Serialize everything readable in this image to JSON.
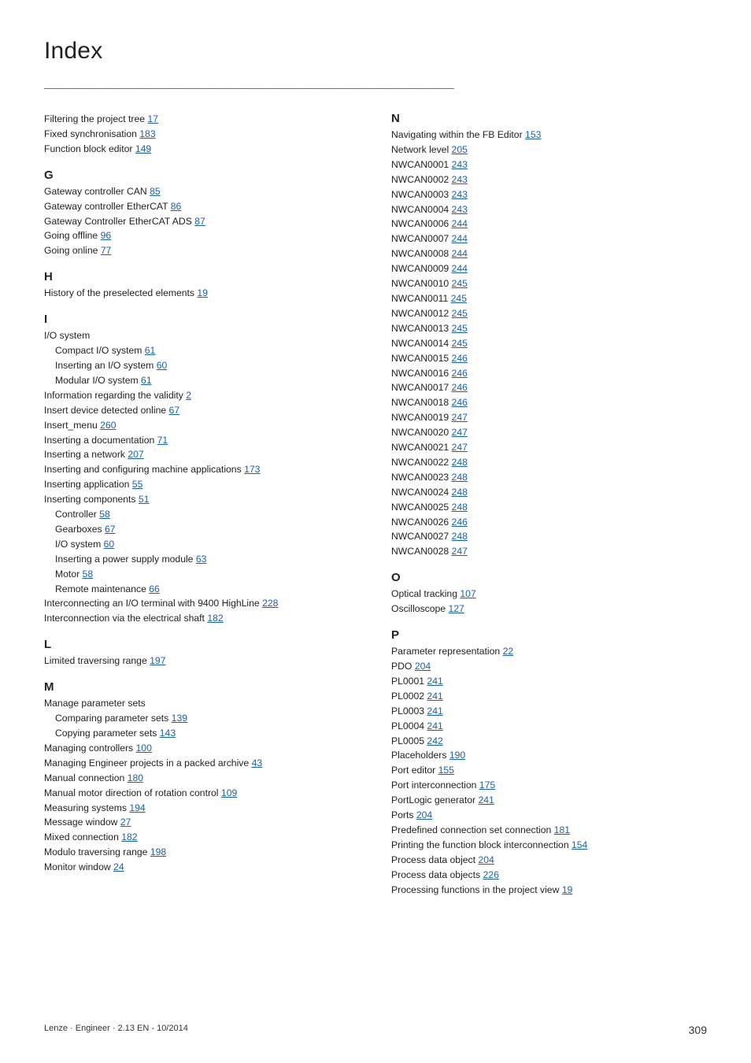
{
  "title": "Index",
  "footer": {
    "left": "Lenze · Engineer · 2.13 EN - 10/2014",
    "page": "309"
  },
  "dash_char": "_",
  "dash_count": 62,
  "left": [
    {
      "t": "entry",
      "text": "Filtering the project tree",
      "page": "17",
      "first": true
    },
    {
      "t": "entry",
      "text": "Fixed synchronisation",
      "page": "183"
    },
    {
      "t": "entry",
      "text": "Function block editor",
      "page": "149"
    },
    {
      "t": "sect",
      "label": "G"
    },
    {
      "t": "entry",
      "text": "Gateway controller CAN",
      "page": "85"
    },
    {
      "t": "entry",
      "text": "Gateway controller EtherCAT",
      "page": "86"
    },
    {
      "t": "entry",
      "text": "Gateway Controller EtherCAT ADS",
      "page": "87"
    },
    {
      "t": "entry",
      "text": "Going offline",
      "page": "96"
    },
    {
      "t": "entry",
      "text": "Going online",
      "page": "77"
    },
    {
      "t": "sect",
      "label": "H"
    },
    {
      "t": "entry",
      "text": "History of the preselected elements",
      "page": "19"
    },
    {
      "t": "sect",
      "label": "I"
    },
    {
      "t": "entry",
      "text": "I/O system"
    },
    {
      "t": "entry",
      "sub": true,
      "text": "Compact I/O system",
      "page": "61"
    },
    {
      "t": "entry",
      "sub": true,
      "text": "Inserting an I/O system",
      "page": "60"
    },
    {
      "t": "entry",
      "sub": true,
      "text": "Modular I/O system",
      "page": "61"
    },
    {
      "t": "entry",
      "text": "Information regarding the validity",
      "page": "2"
    },
    {
      "t": "entry",
      "text": "Insert device detected online",
      "page": "67"
    },
    {
      "t": "entry",
      "text": "Insert_menu",
      "page": "260"
    },
    {
      "t": "entry",
      "text": "Inserting a documentation",
      "page": "71"
    },
    {
      "t": "entry",
      "text": "Inserting a network",
      "page": "207"
    },
    {
      "t": "entry",
      "text": "Inserting and configuring machine applications",
      "page": "173"
    },
    {
      "t": "entry",
      "text": "Inserting application",
      "page": "55"
    },
    {
      "t": "entry",
      "text": "Inserting components",
      "page": "51"
    },
    {
      "t": "entry",
      "sub": true,
      "text": "Controller",
      "page": "58"
    },
    {
      "t": "entry",
      "sub": true,
      "text": "Gearboxes",
      "page": "67"
    },
    {
      "t": "entry",
      "sub": true,
      "text": "I/O system",
      "page": "60"
    },
    {
      "t": "entry",
      "sub": true,
      "text": "Inserting a power supply module",
      "page": "63"
    },
    {
      "t": "entry",
      "sub": true,
      "text": "Motor",
      "page": "58"
    },
    {
      "t": "entry",
      "sub": true,
      "text": "Remote maintenance",
      "page": "66"
    },
    {
      "t": "entry",
      "text": "Interconnecting an I/O terminal with 9400 HighLine",
      "page": "228"
    },
    {
      "t": "entry",
      "text": "Interconnection via the electrical shaft",
      "page": "182"
    },
    {
      "t": "sect",
      "label": "L"
    },
    {
      "t": "entry",
      "text": "Limited traversing range",
      "page": "197"
    },
    {
      "t": "sect",
      "label": "M"
    },
    {
      "t": "entry",
      "text": "Manage parameter sets"
    },
    {
      "t": "entry",
      "sub": true,
      "text": "Comparing parameter sets",
      "page": "139"
    },
    {
      "t": "entry",
      "sub": true,
      "text": "Copying parameter sets",
      "page": "143"
    },
    {
      "t": "entry",
      "text": "Managing controllers",
      "page": "100"
    },
    {
      "t": "entry",
      "text": "Managing Engineer projects in a packed archive",
      "page": "43"
    },
    {
      "t": "entry",
      "text": "Manual connection",
      "page": "180"
    },
    {
      "t": "entry",
      "text": "Manual motor direction of rotation control",
      "page": "109"
    },
    {
      "t": "entry",
      "text": "Measuring systems",
      "page": "194"
    },
    {
      "t": "entry",
      "text": "Message window",
      "page": "27"
    },
    {
      "t": "entry",
      "text": "Mixed connection",
      "page": "182"
    },
    {
      "t": "entry",
      "text": "Modulo traversing range",
      "page": "198"
    },
    {
      "t": "entry",
      "text": "Monitor window",
      "page": "24"
    }
  ],
  "right": [
    {
      "t": "sect",
      "label": "N",
      "first": true
    },
    {
      "t": "entry",
      "text": "Navigating within the FB Editor",
      "page": "153"
    },
    {
      "t": "entry",
      "text": "Network level",
      "page": "205"
    },
    {
      "t": "entry",
      "text": "NWCAN0001",
      "page": "243"
    },
    {
      "t": "entry",
      "text": "NWCAN0002",
      "page": "243"
    },
    {
      "t": "entry",
      "text": "NWCAN0003",
      "page": "243"
    },
    {
      "t": "entry",
      "text": "NWCAN0004",
      "page": "243"
    },
    {
      "t": "entry",
      "text": "NWCAN0006",
      "page": "244"
    },
    {
      "t": "entry",
      "text": "NWCAN0007",
      "page": "244"
    },
    {
      "t": "entry",
      "text": "NWCAN0008",
      "page": "244"
    },
    {
      "t": "entry",
      "text": "NWCAN0009",
      "page": "244"
    },
    {
      "t": "entry",
      "text": "NWCAN0010",
      "page": "245"
    },
    {
      "t": "entry",
      "text": "NWCAN0011",
      "page": "245"
    },
    {
      "t": "entry",
      "text": "NWCAN0012",
      "page": "245"
    },
    {
      "t": "entry",
      "text": "NWCAN0013",
      "page": "245"
    },
    {
      "t": "entry",
      "text": "NWCAN0014",
      "page": "245"
    },
    {
      "t": "entry",
      "text": "NWCAN0015",
      "page": "246"
    },
    {
      "t": "entry",
      "text": "NWCAN0016",
      "page": "246"
    },
    {
      "t": "entry",
      "text": "NWCAN0017",
      "page": "246"
    },
    {
      "t": "entry",
      "text": "NWCAN0018",
      "page": "246"
    },
    {
      "t": "entry",
      "text": "NWCAN0019",
      "page": "247"
    },
    {
      "t": "entry",
      "text": "NWCAN0020",
      "page": "247"
    },
    {
      "t": "entry",
      "text": "NWCAN0021",
      "page": "247"
    },
    {
      "t": "entry",
      "text": "NWCAN0022",
      "page": "248"
    },
    {
      "t": "entry",
      "text": "NWCAN0023",
      "page": "248"
    },
    {
      "t": "entry",
      "text": "NWCAN0024",
      "page": "248"
    },
    {
      "t": "entry",
      "text": "NWCAN0025",
      "page": "248"
    },
    {
      "t": "entry",
      "text": "NWCAN0026",
      "page": "246"
    },
    {
      "t": "entry",
      "text": "NWCAN0027",
      "page": "248"
    },
    {
      "t": "entry",
      "text": "NWCAN0028",
      "page": "247"
    },
    {
      "t": "sect",
      "label": "O"
    },
    {
      "t": "entry",
      "text": "Optical tracking",
      "page": "107"
    },
    {
      "t": "entry",
      "text": "Oscilloscope",
      "page": "127"
    },
    {
      "t": "sect",
      "label": "P"
    },
    {
      "t": "entry",
      "text": "Parameter representation",
      "page": "22"
    },
    {
      "t": "entry",
      "text": "PDO",
      "page": "204"
    },
    {
      "t": "entry",
      "text": "PL0001",
      "page": "241"
    },
    {
      "t": "entry",
      "text": "PL0002",
      "page": "241"
    },
    {
      "t": "entry",
      "text": "PL0003",
      "page": "241"
    },
    {
      "t": "entry",
      "text": "PL0004",
      "page": "241"
    },
    {
      "t": "entry",
      "text": "PL0005",
      "page": "242"
    },
    {
      "t": "entry",
      "text": "Placeholders",
      "page": "190"
    },
    {
      "t": "entry",
      "text": "Port editor",
      "page": "155"
    },
    {
      "t": "entry",
      "text": "Port interconnection",
      "page": "175"
    },
    {
      "t": "entry",
      "text": "PortLogic generator",
      "page": "241"
    },
    {
      "t": "entry",
      "text": "Ports",
      "page": "204"
    },
    {
      "t": "entry",
      "text": "Predefined connection set connection",
      "page": "181"
    },
    {
      "t": "entry",
      "text": "Printing the function block interconnection",
      "page": "154"
    },
    {
      "t": "entry",
      "text": "Process data object",
      "page": "204"
    },
    {
      "t": "entry",
      "text": "Process data objects",
      "page": "226"
    },
    {
      "t": "entry",
      "text": "Processing functions in the project view",
      "page": "19"
    }
  ]
}
